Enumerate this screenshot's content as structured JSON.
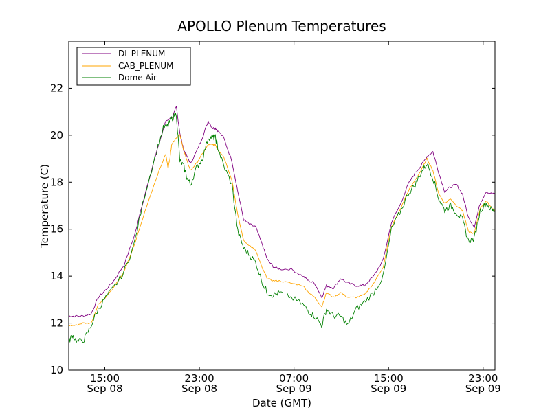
{
  "chart_data": {
    "type": "line",
    "title": "APOLLO Plenum Temperatures",
    "xlabel": "Date (GMT)",
    "ylabel": "Temperature (C)",
    "ylim": [
      10,
      24
    ],
    "xlim_hours": [
      11.2,
      47.25
    ],
    "yticks": [
      10,
      12,
      14,
      16,
      18,
      20,
      22
    ],
    "yticklabels": [
      "10",
      "12",
      "14",
      "16",
      "18",
      "20",
      "22"
    ],
    "xticks": [
      {
        "hour": 14.25,
        "line1": "15:00",
        "line2": "Sep 08"
      },
      {
        "hour": 22.25,
        "line1": "23:00",
        "line2": "Sep 08"
      },
      {
        "hour": 30.25,
        "line1": "07:00",
        "line2": "Sep 09"
      },
      {
        "hour": 38.25,
        "line1": "15:00",
        "line2": "Sep 09"
      },
      {
        "hour": 46.25,
        "line1": "23:00",
        "line2": "Sep 09"
      }
    ],
    "legend_position": "top-left",
    "series": [
      {
        "name": "DI_PLENUM",
        "color": "#800080",
        "x": [
          11.2,
          11.7,
          12.4,
          13.1,
          13.7,
          14.3,
          15.0,
          15.9,
          16.8,
          17.8,
          18.7,
          19.4,
          20.0,
          20.3,
          20.6,
          20.9,
          21.2,
          21.5,
          22.0,
          22.5,
          23.0,
          23.35,
          23.6,
          23.8,
          24.3,
          25.0,
          25.5,
          26.0,
          26.5,
          27.0,
          27.6,
          28.0,
          28.5,
          29.0,
          30.0,
          31.0,
          31.5,
          32.0,
          32.6,
          33.0,
          33.6,
          34.2,
          34.8,
          35.5,
          36.2,
          37.0,
          37.8,
          38.5,
          39.2,
          39.9,
          40.5,
          41.0,
          41.5,
          42.0,
          42.5,
          43.0,
          43.5,
          44.0,
          44.5,
          45.0,
          45.5,
          46.0,
          46.5,
          47.0,
          47.25
        ],
        "y": [
          12.3,
          12.3,
          12.3,
          12.4,
          13.1,
          13.4,
          13.8,
          14.5,
          15.8,
          17.8,
          19.4,
          20.6,
          20.8,
          21.2,
          20.1,
          19.4,
          19.1,
          18.8,
          19.3,
          19.9,
          20.6,
          20.3,
          20.3,
          20.2,
          19.9,
          18.9,
          17.6,
          16.4,
          16.2,
          16.1,
          15.3,
          14.7,
          14.4,
          14.3,
          14.3,
          14.0,
          13.8,
          13.7,
          13.1,
          13.6,
          13.5,
          13.9,
          13.7,
          13.6,
          13.6,
          14.0,
          14.7,
          16.3,
          17.0,
          17.9,
          18.4,
          18.7,
          19.1,
          19.3,
          18.4,
          17.6,
          17.8,
          17.9,
          17.5,
          16.5,
          16.1,
          17.1,
          17.6,
          17.5,
          17.5
        ]
      },
      {
        "name": "CAB_PLENUM",
        "color": "#ffa500",
        "x": [
          11.2,
          11.7,
          12.4,
          13.1,
          13.7,
          14.3,
          15.0,
          15.9,
          16.8,
          17.8,
          18.7,
          19.4,
          19.6,
          19.75,
          19.9,
          20.3,
          20.6,
          20.9,
          21.2,
          21.5,
          22.0,
          22.5,
          23.0,
          23.35,
          23.6,
          23.8,
          24.3,
          25.0,
          25.5,
          26.0,
          26.5,
          27.0,
          27.6,
          28.0,
          28.5,
          29.0,
          30.0,
          31.0,
          31.5,
          32.0,
          32.6,
          33.0,
          33.6,
          34.2,
          34.8,
          35.5,
          36.2,
          37.0,
          37.8,
          38.5,
          39.2,
          39.9,
          40.5,
          41.0,
          41.5,
          42.0,
          42.5,
          43.0,
          43.5,
          44.0,
          44.5,
          45.0,
          45.5,
          46.0,
          46.5,
          47.0,
          47.25
        ],
        "y": [
          11.9,
          11.9,
          12.0,
          12.0,
          12.8,
          13.1,
          13.5,
          14.2,
          15.4,
          17.0,
          18.3,
          19.2,
          18.6,
          19.0,
          19.6,
          19.9,
          20.0,
          19.4,
          18.9,
          18.5,
          18.8,
          19.2,
          19.6,
          19.6,
          19.6,
          19.4,
          19.1,
          18.1,
          16.6,
          15.5,
          15.3,
          15.1,
          14.3,
          13.9,
          13.8,
          13.8,
          13.7,
          13.6,
          13.3,
          13.1,
          12.7,
          13.3,
          13.1,
          13.3,
          13.1,
          13.1,
          13.2,
          13.7,
          14.4,
          16.1,
          16.8,
          17.6,
          18.1,
          18.5,
          19.0,
          18.5,
          17.5,
          17.1,
          17.3,
          17.0,
          16.8,
          15.9,
          15.8,
          16.9,
          17.2,
          16.9,
          16.8
        ]
      },
      {
        "name": "Dome Air",
        "color": "#008000",
        "x": [
          11.2,
          11.5,
          11.9,
          12.5,
          13.0,
          13.6,
          14.2,
          15.0,
          15.8,
          16.7,
          17.6,
          18.5,
          19.2,
          19.6,
          19.9,
          20.3,
          20.6,
          20.9,
          21.2,
          21.5,
          22.0,
          22.5,
          23.0,
          23.35,
          23.6,
          23.8,
          24.3,
          25.0,
          25.5,
          26.0,
          26.5,
          27.0,
          27.6,
          28.0,
          28.5,
          29.0,
          30.0,
          31.0,
          31.5,
          32.0,
          32.6,
          33.0,
          33.6,
          34.2,
          34.8,
          35.5,
          36.2,
          37.0,
          37.8,
          38.5,
          39.2,
          39.9,
          40.5,
          41.0,
          41.5,
          42.0,
          42.5,
          43.0,
          43.5,
          44.0,
          44.5,
          45.0,
          45.5,
          46.0,
          46.5,
          47.0,
          47.25
        ],
        "y": [
          11.2,
          11.5,
          11.2,
          11.3,
          11.8,
          12.5,
          13.0,
          13.5,
          14.1,
          15.3,
          17.4,
          19.1,
          20.3,
          20.4,
          20.7,
          20.9,
          18.9,
          18.7,
          18.2,
          17.9,
          18.6,
          19.0,
          19.9,
          19.9,
          19.9,
          19.5,
          18.7,
          17.9,
          15.9,
          15.2,
          14.9,
          14.6,
          13.7,
          13.3,
          13.2,
          13.3,
          13.1,
          12.8,
          12.5,
          12.3,
          11.9,
          12.6,
          12.3,
          12.3,
          11.9,
          12.6,
          12.9,
          13.3,
          14.0,
          16.0,
          16.7,
          17.5,
          17.9,
          18.4,
          18.8,
          18.2,
          17.3,
          16.8,
          17.0,
          16.7,
          16.4,
          15.5,
          15.6,
          16.8,
          17.1,
          16.8,
          16.8
        ]
      }
    ]
  }
}
